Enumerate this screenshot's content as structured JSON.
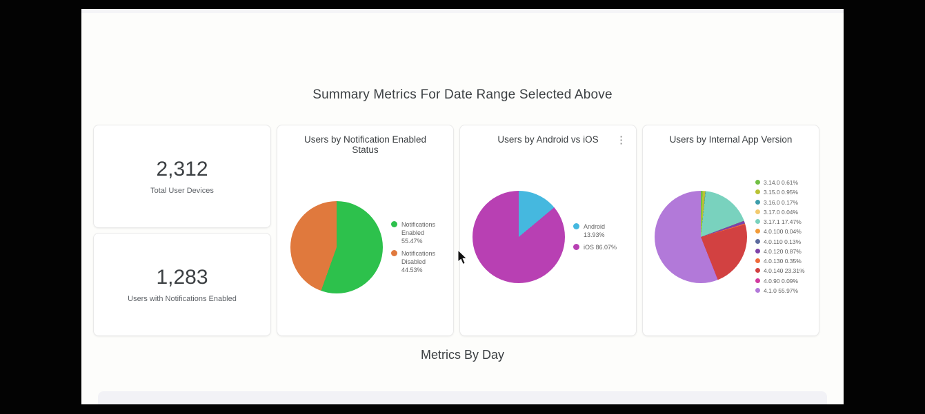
{
  "page": {
    "title": "Summary Metrics For Date Range Selected Above",
    "section2_title": "Metrics By Day"
  },
  "kpis": [
    {
      "value": "2,312",
      "label": "Total User Devices"
    },
    {
      "value": "1,283",
      "label": "Users with Notifications Enabled"
    }
  ],
  "icons": {
    "kebab_menu": "⋮"
  },
  "chart_data": [
    {
      "type": "pie",
      "title": "Users by Notification Enabled Status",
      "legend_position": "right",
      "slices": [
        {
          "label": "Notifications Enabled",
          "pct": "55.47%",
          "value": 55.47,
          "color": "#2dc14c"
        },
        {
          "label": "Notifications Disabled",
          "pct": "44.53%",
          "value": 44.53,
          "color": "#e0793d"
        }
      ]
    },
    {
      "type": "pie",
      "title": "Users by Android vs iOS",
      "legend_position": "right",
      "slices": [
        {
          "label": "Android",
          "pct": "13.93%",
          "value": 13.93,
          "color": "#45b8df"
        },
        {
          "label": "iOS",
          "pct": "86.07%",
          "value": 86.07,
          "color": "#b840b3"
        }
      ]
    },
    {
      "type": "pie",
      "title": "Users by Internal App Version",
      "legend_position": "right",
      "slices": [
        {
          "label": "3.14.0",
          "pct": "0.61%",
          "value": 0.61,
          "color": "#71bf44"
        },
        {
          "label": "3.15.0",
          "pct": "0.95%",
          "value": 0.95,
          "color": "#b9c234"
        },
        {
          "label": "3.16.0",
          "pct": "0.17%",
          "value": 0.17,
          "color": "#3d9dab"
        },
        {
          "label": "3.17.0",
          "pct": "0.04%",
          "value": 0.04,
          "color": "#f2ca6e"
        },
        {
          "label": "3.17.1",
          "pct": "17.47%",
          "value": 17.47,
          "color": "#79d2be"
        },
        {
          "label": "4.0.100",
          "pct": "0.04%",
          "value": 0.04,
          "color": "#f29b38"
        },
        {
          "label": "4.0.110",
          "pct": "0.13%",
          "value": 0.13,
          "color": "#5c6b9e"
        },
        {
          "label": "4.0.120",
          "pct": "0.87%",
          "value": 0.87,
          "color": "#7e42a8"
        },
        {
          "label": "4.0.130",
          "pct": "0.35%",
          "value": 0.35,
          "color": "#ef6a3a"
        },
        {
          "label": "4.0.140",
          "pct": "23.31%",
          "value": 23.31,
          "color": "#d24141"
        },
        {
          "label": "4.0.90",
          "pct": "0.09%",
          "value": 0.09,
          "color": "#d13a9e"
        },
        {
          "label": "4.1.0",
          "pct": "55.97%",
          "value": 55.97,
          "color": "#b279d9"
        }
      ]
    }
  ]
}
